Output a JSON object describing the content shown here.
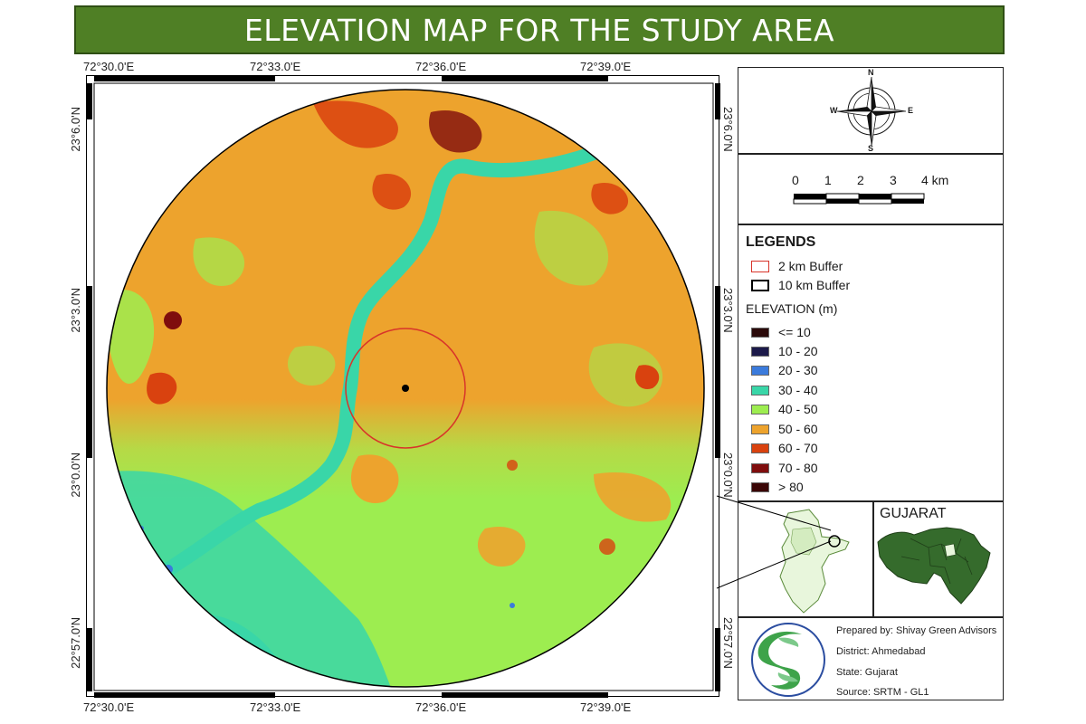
{
  "title": "ELEVATION MAP FOR THE STUDY AREA",
  "coords": {
    "lon": [
      "72°30.0'E",
      "72°33.0'E",
      "72°36.0'E",
      "72°39.0'E"
    ],
    "lat": [
      "23°6.0'N",
      "23°3.0'N",
      "23°0.0'N",
      "22°57.0'N"
    ]
  },
  "compass": {
    "n": "N",
    "s": "S",
    "e": "E",
    "w": "W"
  },
  "scale_bar": {
    "ticks": [
      "0",
      "1",
      "2",
      "3"
    ],
    "last": "4 km"
  },
  "legend": {
    "title": "LEGENDS",
    "buffers": [
      {
        "label": "2 km Buffer",
        "color": "#d8342a"
      },
      {
        "label": "10 km Buffer",
        "color": "#000000"
      }
    ],
    "elevation_title": "ELEVATION (m)",
    "classes": [
      {
        "label": "<= 10",
        "color": "#2b0a0a"
      },
      {
        "label": "10 - 20",
        "color": "#1c1a4a"
      },
      {
        "label": "20 - 30",
        "color": "#3b7bdc"
      },
      {
        "label": "30 - 40",
        "color": "#39d6a8"
      },
      {
        "label": "40 - 50",
        "color": "#9ded50"
      },
      {
        "label": "50 - 60",
        "color": "#eda32d"
      },
      {
        "label": "60 - 70",
        "color": "#d9420f"
      },
      {
        "label": "70 - 80",
        "color": "#7f0d0d"
      },
      {
        "label": "> 80",
        "color": "#3a0606"
      }
    ]
  },
  "inset": {
    "state_label": "GUJARAT"
  },
  "credits": {
    "prepared_by": "Prepared by: Shivay Green Advisors",
    "district": "District: Ahmedabad",
    "state": "State: Gujarat",
    "source": "Source: SRTM - GL1"
  }
}
